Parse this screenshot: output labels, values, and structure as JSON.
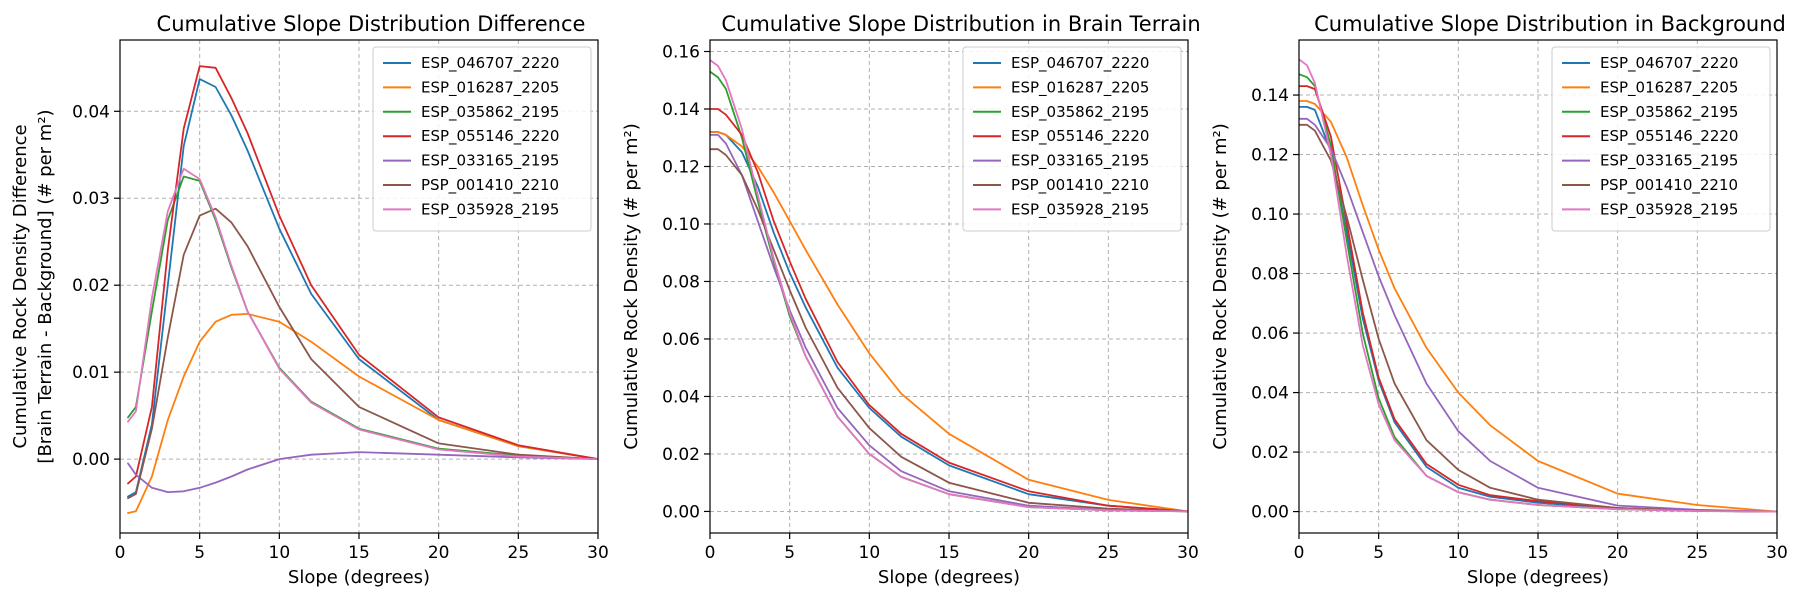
{
  "colors": {
    "ESP_046707_2220": "#1f77b4",
    "ESP_016287_2205": "#ff7f0e",
    "ESP_035862_2195": "#2ca02c",
    "ESP_055146_2220": "#d62728",
    "ESP_033165_2195": "#9467bd",
    "PSP_001410_2210": "#8c564b",
    "ESP_035928_2195": "#e377c2"
  },
  "chart_data": [
    {
      "type": "line",
      "title": "Cumulative Slope Distribution Difference",
      "xlabel": "Slope (degrees)",
      "ylabel_lines": [
        "Cumulative Rock Density Difference",
        "[Brain Terrain - Background] (# per m²)"
      ],
      "xlim": [
        0,
        30
      ],
      "ylim": [
        -0.0085,
        0.0482
      ],
      "xticks": [
        0,
        5,
        10,
        15,
        20,
        25,
        30
      ],
      "yticks": [
        0.0,
        0.01,
        0.02,
        0.03,
        0.04
      ],
      "ytick_labels": [
        "0.00",
        "0.01",
        "0.02",
        "0.03",
        "0.04"
      ],
      "grid": true,
      "legend_position": "top-right",
      "x": [
        0.5,
        1,
        2,
        3,
        4,
        5,
        6,
        7,
        8,
        10,
        12,
        15,
        20,
        25,
        30
      ],
      "series": [
        {
          "name": "ESP_046707_2220",
          "values": [
            -0.0043,
            -0.0038,
            0.004,
            0.02,
            0.036,
            0.0437,
            0.0428,
            0.0395,
            0.0355,
            0.0265,
            0.019,
            0.0115,
            0.0045,
            0.0015,
            0.0
          ]
        },
        {
          "name": "ESP_016287_2205",
          "values": [
            -0.0062,
            -0.006,
            -0.002,
            0.0045,
            0.0095,
            0.0135,
            0.0158,
            0.0166,
            0.0167,
            0.0158,
            0.0135,
            0.0095,
            0.0045,
            0.0015,
            0.0
          ]
        },
        {
          "name": "ESP_035862_2195",
          "values": [
            0.0048,
            0.006,
            0.017,
            0.0275,
            0.0325,
            0.032,
            0.0275,
            0.022,
            0.017,
            0.0105,
            0.0066,
            0.0035,
            0.0012,
            0.0004,
            0.0
          ]
        },
        {
          "name": "ESP_055146_2220",
          "values": [
            -0.0028,
            -0.002,
            0.006,
            0.024,
            0.038,
            0.0452,
            0.045,
            0.0415,
            0.0375,
            0.028,
            0.02,
            0.012,
            0.0048,
            0.0016,
            0.0
          ]
        },
        {
          "name": "ESP_033165_2195",
          "values": [
            -0.0005,
            -0.0018,
            -0.0033,
            -0.0038,
            -0.0037,
            -0.0033,
            -0.0027,
            -0.002,
            -0.0012,
            0.0,
            0.0005,
            0.0008,
            0.0005,
            0.0002,
            0.0
          ]
        },
        {
          "name": "PSP_001410_2210",
          "values": [
            -0.0045,
            -0.004,
            0.0035,
            0.014,
            0.0235,
            0.028,
            0.0288,
            0.0272,
            0.0245,
            0.0175,
            0.0115,
            0.006,
            0.0018,
            0.0005,
            0.0
          ]
        },
        {
          "name": "ESP_035928_2195",
          "values": [
            0.0043,
            0.0055,
            0.0185,
            0.0285,
            0.0334,
            0.0322,
            0.0278,
            0.0222,
            0.017,
            0.0104,
            0.0065,
            0.0034,
            0.0011,
            0.0003,
            0.0
          ]
        }
      ]
    },
    {
      "type": "line",
      "title": "Cumulative Slope Distribution in Brain Terrain",
      "xlabel": "Slope (degrees)",
      "ylabel_lines": [
        "Cumulative Rock Density (# per m²)"
      ],
      "xlim": [
        0,
        30
      ],
      "ylim": [
        -0.0075,
        0.164
      ],
      "xticks": [
        0,
        5,
        10,
        15,
        20,
        25,
        30
      ],
      "yticks": [
        0.0,
        0.02,
        0.04,
        0.06,
        0.08,
        0.1,
        0.12,
        0.14,
        0.16
      ],
      "ytick_labels": [
        "0.00",
        "0.02",
        "0.04",
        "0.06",
        "0.08",
        "0.10",
        "0.12",
        "0.14",
        "0.16"
      ],
      "grid": true,
      "legend_position": "top-right",
      "x": [
        0,
        0.5,
        1,
        2,
        3,
        4,
        5,
        6,
        8,
        10,
        12,
        15,
        20,
        25,
        30
      ],
      "series": [
        {
          "name": "ESP_046707_2220",
          "values": [
            0.132,
            0.132,
            0.131,
            0.125,
            0.113,
            0.097,
            0.083,
            0.071,
            0.05,
            0.036,
            0.026,
            0.016,
            0.006,
            0.002,
            0.0
          ]
        },
        {
          "name": "ESP_016287_2205",
          "values": [
            0.132,
            0.132,
            0.131,
            0.127,
            0.12,
            0.111,
            0.101,
            0.091,
            0.072,
            0.055,
            0.041,
            0.027,
            0.011,
            0.004,
            0.0
          ]
        },
        {
          "name": "ESP_035862_2195",
          "values": [
            0.153,
            0.151,
            0.147,
            0.13,
            0.108,
            0.087,
            0.068,
            0.054,
            0.033,
            0.02,
            0.012,
            0.006,
            0.0015,
            0.0004,
            0.0
          ]
        },
        {
          "name": "ESP_055146_2220",
          "values": [
            0.14,
            0.14,
            0.138,
            0.131,
            0.118,
            0.101,
            0.087,
            0.074,
            0.052,
            0.037,
            0.027,
            0.017,
            0.007,
            0.002,
            0.0
          ]
        },
        {
          "name": "ESP_033165_2195",
          "values": [
            0.131,
            0.131,
            0.128,
            0.117,
            0.101,
            0.085,
            0.07,
            0.057,
            0.036,
            0.023,
            0.014,
            0.007,
            0.002,
            0.0005,
            0.0
          ]
        },
        {
          "name": "PSP_001410_2210",
          "values": [
            0.126,
            0.126,
            0.124,
            0.117,
            0.105,
            0.091,
            0.077,
            0.064,
            0.043,
            0.029,
            0.019,
            0.01,
            0.003,
            0.001,
            0.0
          ]
        },
        {
          "name": "ESP_035928_2195",
          "values": [
            0.157,
            0.155,
            0.15,
            0.133,
            0.11,
            0.088,
            0.069,
            0.054,
            0.033,
            0.02,
            0.012,
            0.006,
            0.0015,
            0.0004,
            0.0
          ]
        }
      ]
    },
    {
      "type": "line",
      "title": "Cumulative Slope Distribution in Background",
      "xlabel": "Slope (degrees)",
      "ylabel_lines": [
        "Cumulative Rock Density (# per m²)"
      ],
      "xlim": [
        0,
        30
      ],
      "ylim": [
        -0.0072,
        0.1585
      ],
      "xticks": [
        0,
        5,
        10,
        15,
        20,
        25,
        30
      ],
      "yticks": [
        0.0,
        0.02,
        0.04,
        0.06,
        0.08,
        0.1,
        0.12,
        0.14
      ],
      "ytick_labels": [
        "0.00",
        "0.02",
        "0.04",
        "0.06",
        "0.08",
        "0.10",
        "0.12",
        "0.14"
      ],
      "grid": true,
      "legend_position": "top-right",
      "x": [
        0,
        0.5,
        1,
        2,
        3,
        4,
        5,
        6,
        8,
        10,
        12,
        15,
        20,
        25,
        30
      ],
      "series": [
        {
          "name": "ESP_046707_2220",
          "values": [
            0.136,
            0.136,
            0.135,
            0.121,
            0.094,
            0.065,
            0.044,
            0.03,
            0.015,
            0.008,
            0.005,
            0.003,
            0.001,
            0.0003,
            0.0
          ]
        },
        {
          "name": "ESP_016287_2205",
          "values": [
            0.138,
            0.138,
            0.137,
            0.131,
            0.119,
            0.103,
            0.088,
            0.075,
            0.055,
            0.04,
            0.029,
            0.017,
            0.006,
            0.0022,
            0.0
          ]
        },
        {
          "name": "ESP_035862_2195",
          "values": [
            0.147,
            0.146,
            0.143,
            0.123,
            0.091,
            0.06,
            0.038,
            0.025,
            0.012,
            0.0065,
            0.004,
            0.0022,
            0.0008,
            0.0002,
            0.0
          ]
        },
        {
          "name": "ESP_055146_2220",
          "values": [
            0.143,
            0.143,
            0.142,
            0.126,
            0.097,
            0.067,
            0.045,
            0.031,
            0.016,
            0.009,
            0.0055,
            0.0035,
            0.0012,
            0.0003,
            0.0
          ]
        },
        {
          "name": "ESP_033165_2195",
          "values": [
            0.132,
            0.132,
            0.13,
            0.122,
            0.109,
            0.094,
            0.079,
            0.066,
            0.043,
            0.027,
            0.017,
            0.008,
            0.002,
            0.0006,
            0.0
          ]
        },
        {
          "name": "PSP_001410_2210",
          "values": [
            0.13,
            0.13,
            0.128,
            0.118,
            0.099,
            0.078,
            0.058,
            0.043,
            0.024,
            0.014,
            0.008,
            0.004,
            0.0012,
            0.0003,
            0.0
          ]
        },
        {
          "name": "ESP_035928_2195",
          "values": [
            0.152,
            0.15,
            0.144,
            0.12,
            0.086,
            0.056,
            0.036,
            0.024,
            0.012,
            0.0065,
            0.004,
            0.0022,
            0.0008,
            0.0002,
            0.0
          ]
        }
      ]
    }
  ]
}
